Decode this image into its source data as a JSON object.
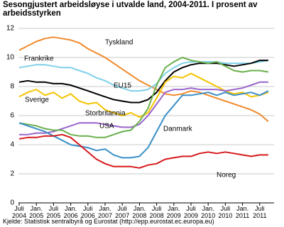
{
  "chart_data": {
    "type": "line",
    "title": "Sesongjustert arbeidsløyse i utvalde land, 2004-2011. I prosent av arbeidsstyrken",
    "source": "Kjelde: Statistisk sentralbyrå og Eurostat (http://epp.eurostat.ec.europa.eu)",
    "categories": [
      "Juli 2004",
      null,
      "Jan. 2005",
      null,
      "Juli 2005",
      null,
      "Jan. 2006",
      null,
      "Juli 2006",
      null,
      "Jan. 2007",
      null,
      "Juli 2007",
      null,
      "Jan. 2008",
      null,
      "Juli 2008",
      null,
      "Jan. 2009",
      null,
      "Juli 2009",
      null,
      "Jan. 2010",
      null,
      "Juli 2010",
      null,
      "Jan. 2011",
      null,
      "Juli 2011",
      null
    ],
    "ylim": [
      0,
      12
    ],
    "yticks": [
      0,
      2,
      4,
      6,
      8,
      10,
      12
    ],
    "grid": true,
    "series": [
      {
        "name": "Tyskland",
        "color": "#f08a2c",
        "values": [
          10.5,
          10.8,
          11.1,
          11.3,
          11.4,
          11.3,
          11.2,
          11.0,
          10.6,
          10.3,
          10.0,
          9.6,
          9.2,
          8.8,
          8.4,
          8.1,
          7.8,
          7.5,
          7.4,
          7.5,
          7.7,
          7.6,
          7.4,
          7.2,
          7.0,
          6.8,
          6.6,
          6.4,
          6.1,
          5.6
        ]
      },
      {
        "name": "Frankrike",
        "color": "#7fd0e8",
        "values": [
          9.3,
          9.4,
          9.5,
          9.5,
          9.4,
          9.3,
          9.3,
          9.1,
          8.9,
          8.6,
          8.4,
          8.1,
          7.9,
          7.7,
          7.7,
          7.8,
          8.2,
          8.9,
          9.3,
          9.6,
          9.7,
          9.7,
          9.7,
          9.7,
          9.6,
          9.6,
          9.6,
          9.6,
          9.7,
          9.8
        ]
      },
      {
        "name": "EU15",
        "color": "#000000",
        "values": [
          8.3,
          8.4,
          8.3,
          8.3,
          8.2,
          8.2,
          8.1,
          7.9,
          7.7,
          7.5,
          7.3,
          7.1,
          7.0,
          6.9,
          6.9,
          7.1,
          7.6,
          8.4,
          9.0,
          9.3,
          9.5,
          9.6,
          9.6,
          9.6,
          9.5,
          9.4,
          9.5,
          9.6,
          9.8,
          9.8
        ]
      },
      {
        "name": "Sverige",
        "color": "#f5c400",
        "values": [
          7.3,
          7.6,
          7.8,
          7.4,
          7.6,
          7.2,
          7.5,
          7.0,
          6.8,
          6.9,
          6.4,
          6.2,
          6.0,
          6.2,
          5.9,
          6.2,
          7.2,
          8.3,
          8.7,
          8.6,
          8.9,
          8.6,
          8.3,
          8.0,
          7.7,
          7.5,
          7.6,
          7.3,
          7.4,
          7.6
        ]
      },
      {
        "name": "Storbritannia",
        "color": "#9966cc",
        "values": [
          4.7,
          4.7,
          4.8,
          4.8,
          4.9,
          5.1,
          5.3,
          5.5,
          5.5,
          5.5,
          5.4,
          5.3,
          5.2,
          5.2,
          5.4,
          6.0,
          6.8,
          7.6,
          7.8,
          7.8,
          7.9,
          7.8,
          7.8,
          7.8,
          7.7,
          7.8,
          7.9,
          8.1,
          8.3,
          8.3
        ]
      },
      {
        "name": "USA",
        "color": "#6ab04c",
        "values": [
          5.5,
          5.4,
          5.3,
          5.1,
          5.0,
          5.0,
          4.7,
          4.6,
          4.6,
          4.5,
          4.5,
          4.7,
          4.9,
          5.0,
          5.6,
          6.5,
          8.1,
          9.3,
          9.7,
          10.0,
          9.8,
          9.7,
          9.6,
          9.7,
          9.4,
          9.1,
          9.0,
          9.1,
          9.1,
          9.0
        ]
      },
      {
        "name": "Danmark",
        "color": "#3a8fc7",
        "values": [
          5.5,
          5.3,
          5.1,
          4.9,
          4.6,
          4.3,
          4.0,
          3.9,
          3.8,
          3.6,
          3.7,
          3.3,
          3.1,
          3.1,
          3.2,
          3.8,
          4.9,
          6.0,
          6.7,
          7.4,
          7.4,
          7.5,
          7.6,
          7.4,
          7.6,
          7.4,
          7.5,
          7.6,
          7.4,
          7.7
        ]
      },
      {
        "name": "Noreg",
        "color": "#d7191c",
        "values": [
          4.4,
          4.5,
          4.5,
          4.6,
          4.6,
          4.7,
          4.5,
          4.0,
          3.5,
          3.0,
          2.7,
          2.5,
          2.5,
          2.5,
          2.4,
          2.6,
          2.7,
          3.0,
          3.1,
          3.2,
          3.2,
          3.4,
          3.5,
          3.4,
          3.5,
          3.4,
          3.3,
          3.2,
          3.3,
          3.3
        ]
      }
    ]
  }
}
